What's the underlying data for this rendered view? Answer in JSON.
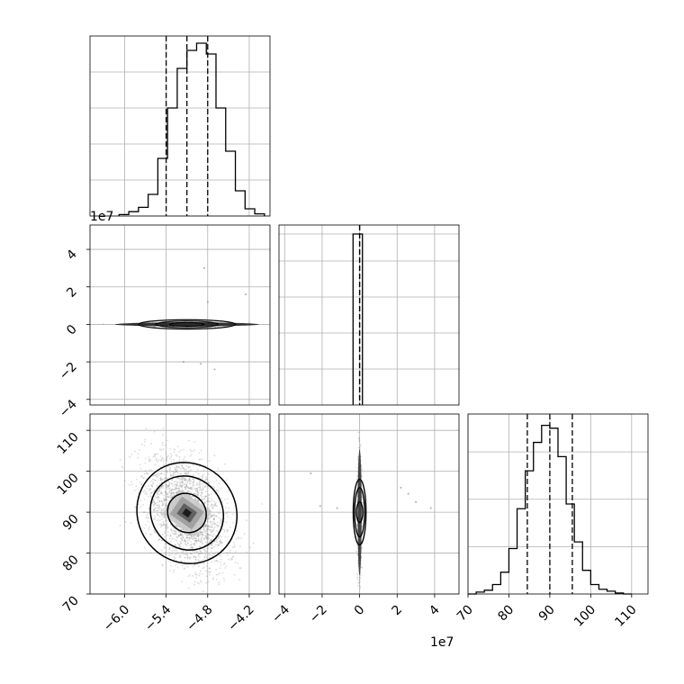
{
  "chart_data": {
    "type": "corner",
    "parameters": 3,
    "colors": {
      "ink": "#000000",
      "grid": "#b0b0b0",
      "background": "#ffffff"
    },
    "panels": [
      {
        "id": "hist-0",
        "type": "histogram",
        "x_range": [
          -6.5,
          -3.9
        ],
        "x_ticks": [
          -6.0,
          -5.4,
          -4.8,
          -4.2
        ],
        "bin_edges": [
          -6.08,
          -5.94,
          -5.8,
          -5.66,
          -5.52,
          -5.38,
          -5.24,
          -5.1,
          -4.96,
          -4.82,
          -4.68,
          -4.54,
          -4.4,
          -4.26,
          -4.12,
          -3.98
        ],
        "counts": [
          2,
          6,
          12,
          30,
          80,
          150,
          205,
          230,
          240,
          225,
          150,
          90,
          35,
          10,
          3
        ],
        "y_max": 250,
        "quantiles": [
          -5.4,
          -5.1,
          -4.8
        ],
        "tick_labels_shown": false
      },
      {
        "id": "hist-1",
        "type": "histogram",
        "x_range": [
          -4.3,
          5.3
        ],
        "x_ticks": [
          -4,
          -2,
          0,
          2,
          4
        ],
        "tick_label_texts": [
          "−4",
          "−2",
          "0",
          "2",
          "4"
        ],
        "offset_text": "1e7",
        "bins": [
          {
            "x0": -0.35,
            "x1": 0.15,
            "count": 950
          }
        ],
        "y_max": 1000,
        "quantiles": [
          -0.01,
          0.0,
          0.01
        ],
        "tick_labels_shown": false
      },
      {
        "id": "hist-2",
        "type": "histogram",
        "x_range": [
          70,
          114
        ],
        "x_ticks": [
          70,
          80,
          90,
          100,
          110
        ],
        "bin_edges": [
          70,
          72,
          74,
          76,
          78,
          80,
          82,
          84,
          86,
          88,
          90,
          92,
          94,
          96,
          98,
          100,
          102,
          104,
          106,
          108,
          110
        ],
        "counts": [
          0,
          2,
          4,
          10,
          23,
          48,
          90,
          130,
          160,
          178,
          175,
          145,
          95,
          55,
          25,
          10,
          5,
          3,
          1,
          0
        ],
        "y_max": 190,
        "quantiles": [
          84.5,
          90.0,
          95.5
        ],
        "x_tick_labels": [
          "70",
          "80",
          "90",
          "100",
          "110"
        ]
      },
      {
        "id": "joint-1-0",
        "type": "contour-2d",
        "x_range": [
          -6.5,
          -3.9
        ],
        "y_range": [
          -4.3,
          5.3
        ],
        "y_ticks": [
          4,
          2,
          0,
          -2,
          -4
        ],
        "y_tick_labels": [
          "4",
          "2",
          "0",
          "−2",
          "−4"
        ],
        "offset_text": "1e7",
        "center": [
          -5.1,
          0.0
        ],
        "levels": [
          {
            "x_half_width": 0.25,
            "y_half_height": 0.2
          },
          {
            "x_half_width": 0.45,
            "y_half_height": 0.35
          },
          {
            "x_half_width": 0.7,
            "y_half_height": 0.15
          }
        ],
        "outliers": [
          [
            -4.85,
            3.0
          ],
          [
            -4.8,
            1.2
          ],
          [
            -4.25,
            1.6
          ],
          [
            -5.15,
            -2.0
          ],
          [
            -4.9,
            -2.1
          ],
          [
            -4.7,
            -2.4
          ]
        ]
      },
      {
        "id": "joint-2-0",
        "type": "contour-2d",
        "x_range": [
          -6.5,
          -3.9
        ],
        "y_range": [
          70,
          114
        ],
        "x_ticks": [
          -6.0,
          -5.4,
          -4.8,
          -4.2
        ],
        "x_tick_labels": [
          "−6.0",
          "−5.4",
          "−4.8",
          "−4.2"
        ],
        "y_ticks": [
          110,
          100,
          90,
          80,
          70
        ],
        "y_tick_labels": [
          "110",
          "100",
          "90",
          "80",
          "70"
        ],
        "center": [
          -5.1,
          89.8
        ],
        "correlation": -0.45,
        "levels": [
          {
            "sx": 0.18,
            "sy": 4.5
          },
          {
            "sx": 0.34,
            "sy": 8.5
          },
          {
            "sx": 0.47,
            "sy": 11.5
          }
        ]
      },
      {
        "id": "joint-2-1",
        "type": "contour-2d",
        "x_range": [
          -4.3,
          5.3
        ],
        "y_range": [
          70,
          114
        ],
        "x_ticks": [
          -4,
          -2,
          0,
          2,
          4
        ],
        "x_tick_labels": [
          "−4",
          "−2",
          "0",
          "2",
          "4"
        ],
        "offset_text": "1e7",
        "center": [
          0.0,
          90.0
        ],
        "levels": [
          {
            "sx": 0.1,
            "sy": 2.5
          },
          {
            "sx": 0.2,
            "sy": 6.0
          },
          {
            "sx": 0.28,
            "sy": 8.0
          }
        ],
        "outliers": [
          [
            -2.6,
            99.5
          ],
          [
            2.2,
            96.0
          ],
          [
            2.6,
            94.5
          ],
          [
            3.0,
            92.5
          ],
          [
            3.8,
            91.0
          ],
          [
            -2.1,
            91.5
          ],
          [
            -1.2,
            91.0
          ]
        ]
      }
    ]
  }
}
